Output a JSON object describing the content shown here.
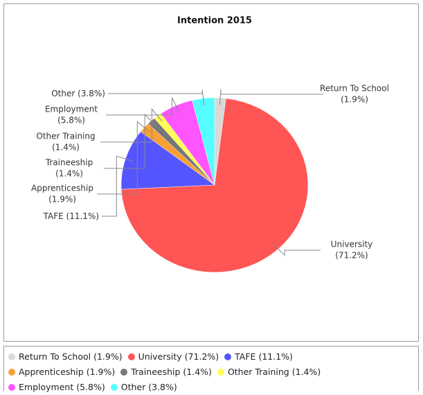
{
  "chart_data": {
    "type": "pie",
    "title": "Intention 2015",
    "categories": [
      "Return To School",
      "University",
      "TAFE",
      "Apprenticeship",
      "Traineeship",
      "Other Training",
      "Employment",
      "Other"
    ],
    "values": [
      1.9,
      71.2,
      11.1,
      1.9,
      1.4,
      1.4,
      5.8,
      3.8
    ],
    "value_labels": [
      "(1.9%)",
      "(71.2%)",
      "(11.1%)",
      "(1.9%)",
      "(1.4%)",
      "(1.4%)",
      "(5.8%)",
      "(3.8%)"
    ],
    "colors": [
      "#d9d9d9",
      "#ff5555",
      "#5555ff",
      "#f7a035",
      "#777777",
      "#ffff55",
      "#ff55ff",
      "#55ffff"
    ],
    "legend": "bottom"
  }
}
